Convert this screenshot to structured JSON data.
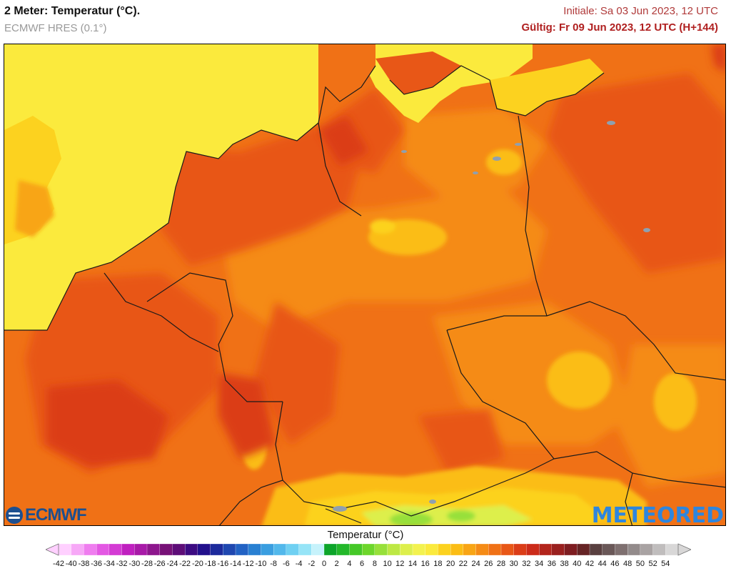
{
  "header": {
    "title": "2 Meter: Temperatur (°C).",
    "model": "ECMWF HRES (0.1°)",
    "initial": "Initiale: Sa 03 Jun 2023, 12 UTC",
    "valid": "Gültig: Fr 09 Jun 2023, 12 UTC (H+144)"
  },
  "logos": {
    "left": "ECMWF",
    "right": "METEORED"
  },
  "legend": {
    "title": "Temperatur (°C)",
    "ticks": [
      "-42",
      "-40",
      "-38",
      "-36",
      "-34",
      "-32",
      "-30",
      "-28",
      "-26",
      "-24",
      "-22",
      "-20",
      "-18",
      "-16",
      "-14",
      "-12",
      "-10",
      "-8",
      "-6",
      "-4",
      "-2",
      "0",
      "2",
      "4",
      "6",
      "8",
      "10",
      "12",
      "14",
      "16",
      "18",
      "20",
      "22",
      "24",
      "26",
      "28",
      "30",
      "32",
      "34",
      "36",
      "38",
      "40",
      "42",
      "44",
      "46",
      "48",
      "50",
      "52",
      "54"
    ],
    "colors": [
      "#ffd0ff",
      "#f7a8f7",
      "#ef7def",
      "#e358e3",
      "#d43bd4",
      "#c020c0",
      "#a81aa8",
      "#8d168d",
      "#771177",
      "#5e0d78",
      "#3c0b82",
      "#22108c",
      "#1c2a9c",
      "#1f47b0",
      "#2262c4",
      "#2980d2",
      "#3a9ee0",
      "#52b8eb",
      "#6fd0f2",
      "#96e4f7",
      "#c6f2fb",
      "#0ca52a",
      "#23b82a",
      "#45c828",
      "#6dd62b",
      "#97e03a",
      "#bde844",
      "#ddef4c",
      "#f3f24f",
      "#fbea3d",
      "#fcd21f",
      "#fbbd15",
      "#f8a515",
      "#f58b16",
      "#f07116",
      "#e85717",
      "#db3d18",
      "#cc2b1a",
      "#b3251c",
      "#9a201f",
      "#7e1d21",
      "#662425",
      "#594040",
      "#6a5858",
      "#7f7070",
      "#938b8b",
      "#a9a3a3",
      "#c0bdbd",
      "#d8d7d7"
    ]
  },
  "map": {
    "region": "Mitteleuropa / Deutschland",
    "palette": {
      "sea_yellow": "#fbea3d",
      "light_orange": "#fbbd15",
      "orange": "#f58b16",
      "dark_orange": "#f07116",
      "red_orange": "#e85717",
      "red": "#db3d18",
      "alps_green": "#97e03a",
      "borders": "#1a1a1a",
      "lakes": "#8fa0b0"
    }
  }
}
